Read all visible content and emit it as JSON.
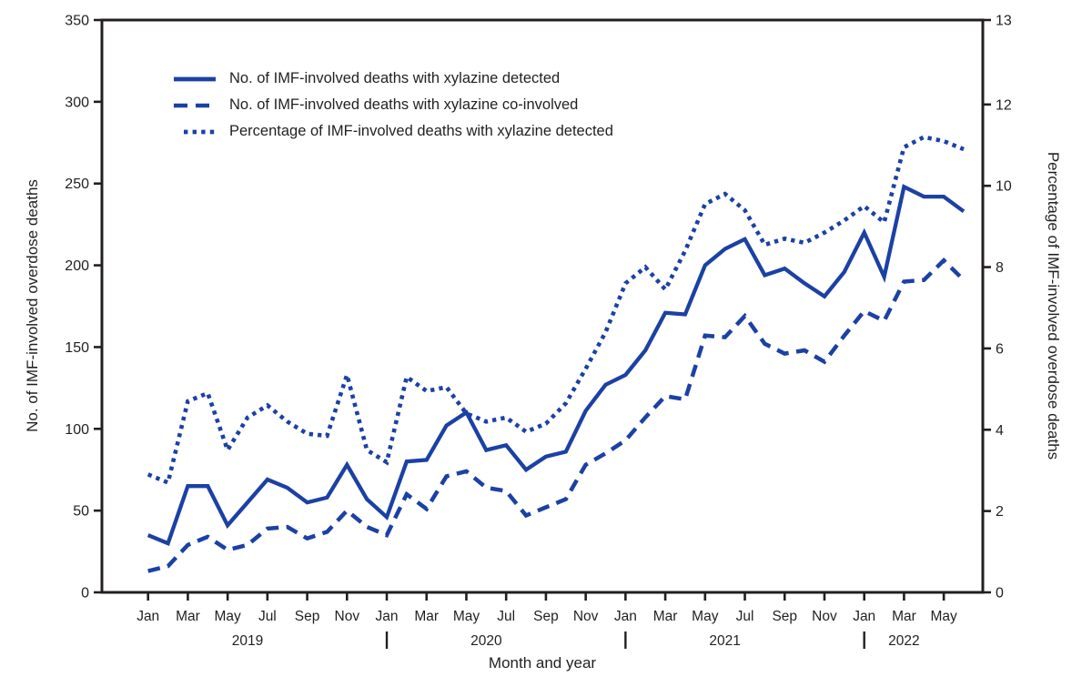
{
  "colors": {
    "line_blue": "#1B41A4",
    "axis_black": "#231F20",
    "background": "#FFFFFF"
  },
  "legend": {
    "items": [
      {
        "label": "No. of IMF-involved deaths with xylazine detected",
        "style": "solid"
      },
      {
        "label": "No. of IMF-involved deaths with xylazine co-involved",
        "style": "dashed"
      },
      {
        "label": "Percentage of IMF-involved deaths with xylazine detected",
        "style": "dotted"
      }
    ]
  },
  "chart_data": {
    "type": "line",
    "title": "",
    "xlabel": "Month and year",
    "ylabel_left": "No. of IMF-involved overdose deaths",
    "ylabel_right": "Percentage of IMF-involved overdose deaths",
    "x": [
      "Jan 2019",
      "Feb 2019",
      "Mar 2019",
      "Apr 2019",
      "May 2019",
      "Jun 2019",
      "Jul 2019",
      "Aug 2019",
      "Sep 2019",
      "Oct 2019",
      "Nov 2019",
      "Dec 2019",
      "Jan 2020",
      "Feb 2020",
      "Mar 2020",
      "Apr 2020",
      "May 2020",
      "Jun 2020",
      "Jul 2020",
      "Aug 2020",
      "Sep 2020",
      "Oct 2020",
      "Nov 2020",
      "Dec 2020",
      "Jan 2021",
      "Feb 2021",
      "Mar 2021",
      "Apr 2021",
      "May 2021",
      "Jun 2021",
      "Jul 2021",
      "Aug 2021",
      "Sep 2021",
      "Oct 2021",
      "Nov 2021",
      "Dec 2021",
      "Jan 2022",
      "Feb 2022",
      "Mar 2022",
      "Apr 2022",
      "May 2022",
      "Jun 2022"
    ],
    "x_tick_labels": [
      "Jan",
      "Mar",
      "May",
      "Jul",
      "Sep",
      "Nov",
      "Jan",
      "Mar",
      "May",
      "Jul",
      "Sep",
      "Nov",
      "Jan",
      "Mar",
      "May",
      "Jul",
      "Sep",
      "Nov",
      "Jan",
      "Mar",
      "May"
    ],
    "years": [
      {
        "label": "2019",
        "from_index": 0,
        "to_index": 10
      },
      {
        "label": "2020",
        "from_index": 12,
        "to_index": 22
      },
      {
        "label": "2021",
        "from_index": 24,
        "to_index": 34
      },
      {
        "label": "2022",
        "from_index": 36,
        "to_index": 40
      }
    ],
    "year_separator_indices": [
      12,
      24,
      36
    ],
    "y_left": {
      "ticks": [
        0,
        50,
        100,
        150,
        200,
        250,
        300,
        350
      ],
      "lim": [
        0,
        350
      ]
    },
    "y_right": {
      "ticks": [
        0,
        2,
        4,
        6,
        8,
        10,
        12
      ],
      "top_tick_label": "13",
      "lim": [
        0,
        13
      ]
    },
    "series": [
      {
        "name": "No. of IMF-involved deaths with xylazine detected",
        "axis": "left",
        "style": "solid",
        "values": [
          35,
          30,
          65,
          65,
          41,
          55,
          69,
          64,
          55,
          58,
          78,
          57,
          46,
          80,
          81,
          102,
          110,
          87,
          90,
          75,
          83,
          86,
          111,
          127,
          133,
          148,
          171,
          170,
          200,
          210,
          216,
          194,
          198,
          189,
          181,
          196,
          220,
          193,
          248,
          242,
          242,
          233
        ]
      },
      {
        "name": "No. of IMF-involved deaths with xylazine co-involved",
        "axis": "left",
        "style": "dashed",
        "values": [
          13,
          16,
          29,
          34,
          26,
          29,
          39,
          40,
          33,
          37,
          50,
          40,
          35,
          60,
          51,
          71,
          74,
          64,
          62,
          47,
          52,
          57,
          78,
          85,
          93,
          107,
          120,
          118,
          157,
          156,
          169,
          152,
          146,
          148,
          141,
          157,
          172,
          166,
          190,
          191,
          203,
          191
        ]
      },
      {
        "name": "Percentage of IMF-involved deaths with xylazine detected",
        "axis": "right",
        "style": "dotted",
        "values": [
          2.9,
          2.7,
          4.7,
          4.9,
          3.5,
          4.3,
          4.6,
          4.2,
          3.9,
          3.85,
          5.35,
          3.5,
          3.2,
          5.3,
          4.95,
          5.05,
          4.4,
          4.2,
          4.3,
          3.95,
          4.15,
          4.65,
          5.5,
          6.4,
          7.6,
          8.0,
          7.45,
          8.4,
          9.55,
          9.8,
          9.4,
          8.55,
          8.7,
          8.6,
          8.85,
          9.15,
          9.5,
          9.1,
          10.95,
          11.2,
          11.1,
          10.9
        ]
      }
    ]
  }
}
